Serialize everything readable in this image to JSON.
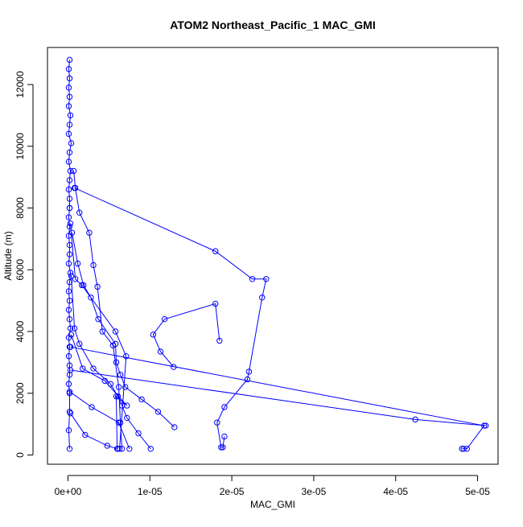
{
  "chart_data": {
    "type": "line",
    "title": "ATOM2 Northeast_Pacific_1 MAC_GMI",
    "xlabel": "MAC_GMI",
    "ylabel": "Altitude (m)",
    "xlim": [
      -2.5e-06,
      5.25e-05
    ],
    "ylim": [
      -300,
      13200
    ],
    "x_ticks": [
      0,
      1e-05,
      2e-05,
      3e-05,
      4e-05,
      5e-05
    ],
    "x_tick_labels": [
      "0e+00",
      "1e-05",
      "2e-05",
      "3e-05",
      "4e-05",
      "5e-05"
    ],
    "y_ticks": [
      0,
      2000,
      4000,
      6000,
      8000,
      10000,
      12000
    ],
    "y_tick_labels": [
      "0",
      "2000",
      "4000",
      "6000",
      "8000",
      "10000",
      "12000"
    ],
    "grid": false,
    "legend": "none",
    "marker": "open-circle",
    "color": "#0000ff",
    "series": [
      {
        "x": [
          2e-07,
          1e-07,
          2e-07,
          1e-07,
          2e-07,
          1e-07,
          3e-07,
          2e-07,
          1e-07,
          4e-07,
          2e-07,
          1e-07,
          3e-07,
          2e-07,
          1e-07,
          2e-07,
          2e-07
        ],
        "y": [
          12800,
          12500,
          12200,
          11900,
          11600,
          11300,
          11000,
          10700,
          10400,
          10100,
          9800,
          9500,
          9200,
          8900,
          8600,
          8300,
          8000
        ]
      },
      {
        "x": [
          2e-07,
          1e-07,
          2e-07,
          1e-07,
          2e-07,
          2e-07,
          1e-07,
          3e-07,
          2e-07,
          1e-07,
          2e-07,
          1e-07,
          2e-07,
          3e-07,
          1e-07,
          2e-07,
          1e-07,
          2e-07,
          2e-07,
          1e-07,
          2e-07,
          2e-07,
          1e-07,
          2e-07
        ],
        "y": [
          8000,
          7700,
          7400,
          7100,
          6800,
          6500,
          6200,
          5900,
          5600,
          5300,
          5000,
          4700,
          4400,
          4100,
          3800,
          3500,
          3200,
          2900,
          2600,
          2300,
          2000,
          1400,
          800,
          200
        ]
      },
      {
        "x": [
          7e-07,
          9e-07,
          1.4e-06,
          2.6e-06,
          3.1e-06,
          3.6e-06,
          4.2e-06,
          5.5e-06,
          6.2e-06,
          6.4e-06,
          6.6e-06
        ],
        "y": [
          9200,
          8650,
          7850,
          7200,
          6150,
          5450,
          4000,
          3550,
          2200,
          1050,
          200
        ]
      },
      {
        "x": [
          8e-07,
          1.8e-05,
          2.25e-05,
          2.42e-05,
          2.37e-05,
          2.21e-05,
          2.19e-05,
          1.91e-05,
          1.82e-05,
          1.87e-05,
          1.89e-05,
          1.91e-05
        ],
        "y": [
          8650,
          6600,
          5700,
          5700,
          5100,
          2700,
          2450,
          1550,
          1050,
          250,
          250,
          600
        ]
      },
      {
        "x": [
          5e-07,
          1.2e-06,
          1.9e-06,
          2.8e-06,
          3.7e-06,
          5.8e-06,
          5.9e-06,
          6.4e-06,
          7e-06,
          9e-06,
          1.1e-05,
          1.3e-05
        ],
        "y": [
          7200,
          6200,
          5500,
          5100,
          4400,
          3600,
          3000,
          2600,
          2200,
          1800,
          1400,
          900
        ]
      },
      {
        "x": [
          3e-07,
          9e-07,
          1.7e-06,
          5.8e-06,
          7.1e-06,
          6.3e-06
        ],
        "y": [
          7500,
          5700,
          5500,
          4000,
          3200,
          200
        ]
      },
      {
        "x": [
          4e-07,
          8e-07,
          1.4e-06,
          3.1e-06,
          5.2e-06,
          6.1e-06,
          6.6e-06,
          7.2e-06,
          8.6e-06,
          1.01e-05
        ],
        "y": [
          5800,
          4100,
          3600,
          2800,
          2300,
          1900,
          1600,
          1200,
          700,
          200
        ]
      },
      {
        "x": [
          4e-07,
          1.8e-06,
          4.5e-06,
          7.2e-06,
          5.9e-06,
          6e-06
        ],
        "y": [
          3900,
          2800,
          2400,
          1600,
          1900,
          200
        ]
      },
      {
        "x": [
          1.85e-05,
          1.8e-05,
          1.18e-05,
          1.04e-05,
          1.13e-05,
          1.29e-05
        ],
        "y": [
          3700,
          4900,
          4400,
          3900,
          3350,
          2850
        ]
      },
      {
        "x": [
          3e-07,
          5.08e-05,
          4.87e-05,
          4.83e-05,
          4.81e-05
        ],
        "y": [
          3500,
          950,
          200,
          200,
          200
        ]
      },
      {
        "x": [
          3e-07,
          4.24e-05,
          5.1e-05
        ],
        "y": [
          2750,
          1150,
          950
        ]
      },
      {
        "x": [
          2e-07,
          2.9e-06,
          6.2e-06,
          7.5e-06
        ],
        "y": [
          2050,
          1550,
          1050,
          200
        ]
      },
      {
        "x": [
          3e-07,
          2.1e-06,
          4.8e-06,
          6.1e-06
        ],
        "y": [
          1350,
          650,
          300,
          200
        ]
      }
    ]
  }
}
